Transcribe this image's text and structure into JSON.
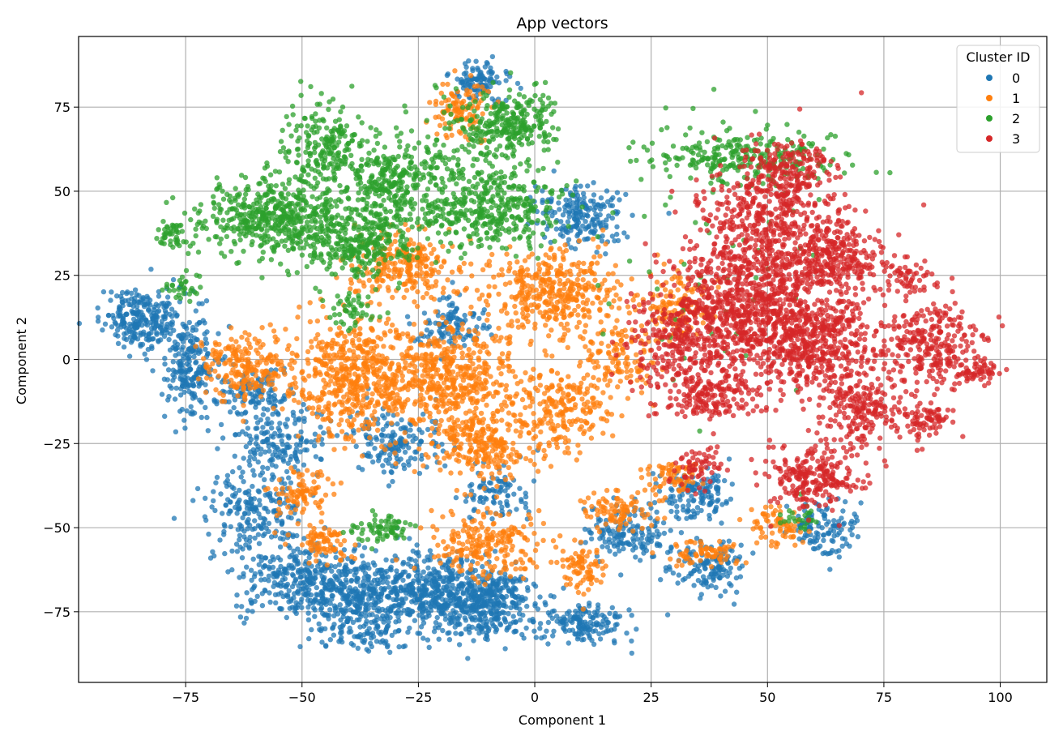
{
  "chart_data": {
    "type": "scatter",
    "title": "App vectors",
    "xlabel": "Component 1",
    "ylabel": "Component 2",
    "xlim": [
      -98,
      110
    ],
    "ylim": [
      -96,
      96
    ],
    "x_ticks": [
      -75,
      -50,
      -25,
      0,
      25,
      50,
      75,
      100
    ],
    "y_ticks": [
      -75,
      -50,
      -25,
      0,
      25,
      50,
      75
    ],
    "x_tick_labels": [
      "−75",
      "−50",
      "−25",
      "0",
      "25",
      "50",
      "75",
      "100"
    ],
    "y_tick_labels": [
      "−75",
      "−50",
      "−25",
      "0",
      "25",
      "50",
      "75"
    ],
    "grid": true,
    "legend": {
      "title": "Cluster ID",
      "position": "top-right"
    },
    "series": [
      {
        "name": "0",
        "color": "#1f77b4",
        "clusters": [
          {
            "x": -12,
            "y": 83,
            "sx": 3,
            "sy": 3,
            "n": 110
          },
          {
            "x": -84,
            "y": 12,
            "sx": 4,
            "sy": 5,
            "n": 250
          },
          {
            "x": -74,
            "y": -2,
            "sx": 3,
            "sy": 8,
            "n": 220
          },
          {
            "x": 10,
            "y": 43,
            "sx": 5,
            "sy": 5,
            "n": 200
          },
          {
            "x": -18,
            "y": 10,
            "sx": 4,
            "sy": 4,
            "n": 110
          },
          {
            "x": -30,
            "y": -25,
            "sx": 5,
            "sy": 5,
            "n": 160
          },
          {
            "x": -55,
            "y": -25,
            "sx": 5,
            "sy": 5,
            "n": 160
          },
          {
            "x": -60,
            "y": -45,
            "sx": 5,
            "sy": 6,
            "n": 200
          },
          {
            "x": -52,
            "y": -65,
            "sx": 6,
            "sy": 6,
            "n": 260
          },
          {
            "x": -38,
            "y": -70,
            "sx": 6,
            "sy": 6,
            "n": 360
          },
          {
            "x": -22,
            "y": -70,
            "sx": 7,
            "sy": 6,
            "n": 420
          },
          {
            "x": -10,
            "y": -72,
            "sx": 5,
            "sy": 5,
            "n": 320
          },
          {
            "x": 10,
            "y": -78,
            "sx": 5,
            "sy": 3,
            "n": 160
          },
          {
            "x": 35,
            "y": -40,
            "sx": 4,
            "sy": 4,
            "n": 130
          },
          {
            "x": 20,
            "y": -52,
            "sx": 5,
            "sy": 4,
            "n": 150
          },
          {
            "x": 38,
            "y": -62,
            "sx": 4,
            "sy": 4,
            "n": 140
          },
          {
            "x": 62,
            "y": -50,
            "sx": 4,
            "sy": 4,
            "n": 120
          },
          {
            "x": -60,
            "y": -10,
            "sx": 4,
            "sy": 4,
            "n": 110
          },
          {
            "x": -8,
            "y": -40,
            "sx": 4,
            "sy": 4,
            "n": 90
          },
          {
            "x": -35,
            "y": -82,
            "sx": 3,
            "sy": 2,
            "n": 50
          }
        ]
      },
      {
        "name": "1",
        "color": "#ff7f0e",
        "clusters": [
          {
            "x": -16,
            "y": 74,
            "sx": 3,
            "sy": 4,
            "n": 110
          },
          {
            "x": 4,
            "y": 20,
            "sx": 7,
            "sy": 7,
            "n": 400
          },
          {
            "x": -28,
            "y": 28,
            "sx": 6,
            "sy": 5,
            "n": 240
          },
          {
            "x": -38,
            "y": -5,
            "sx": 7,
            "sy": 9,
            "n": 560
          },
          {
            "x": -18,
            "y": -5,
            "sx": 7,
            "sy": 7,
            "n": 420
          },
          {
            "x": -12,
            "y": -25,
            "sx": 5,
            "sy": 5,
            "n": 240
          },
          {
            "x": 5,
            "y": -15,
            "sx": 6,
            "sy": 6,
            "n": 240
          },
          {
            "x": -62,
            "y": -2,
            "sx": 5,
            "sy": 5,
            "n": 210
          },
          {
            "x": -50,
            "y": -40,
            "sx": 3,
            "sy": 4,
            "n": 90
          },
          {
            "x": -45,
            "y": -55,
            "sx": 3,
            "sy": 3,
            "n": 80
          },
          {
            "x": -10,
            "y": -55,
            "sx": 6,
            "sy": 5,
            "n": 220
          },
          {
            "x": 10,
            "y": -62,
            "sx": 3,
            "sy": 4,
            "n": 80
          },
          {
            "x": 18,
            "y": -45,
            "sx": 4,
            "sy": 3,
            "n": 90
          },
          {
            "x": 30,
            "y": -35,
            "sx": 3,
            "sy": 3,
            "n": 70
          },
          {
            "x": 36,
            "y": -58,
            "sx": 4,
            "sy": 2,
            "n": 70
          },
          {
            "x": 52,
            "y": -50,
            "sx": 3,
            "sy": 3,
            "n": 70
          },
          {
            "x": 30,
            "y": 15,
            "sx": 4,
            "sy": 6,
            "n": 130
          },
          {
            "x": 18,
            "y": 0,
            "sx": 4,
            "sy": 5,
            "n": 110
          }
        ]
      },
      {
        "name": "2",
        "color": "#2ca02c",
        "clusters": [
          {
            "x": -5,
            "y": 70,
            "sx": 5,
            "sy": 5,
            "n": 260
          },
          {
            "x": -45,
            "y": 62,
            "sx": 5,
            "sy": 6,
            "n": 220
          },
          {
            "x": -30,
            "y": 52,
            "sx": 6,
            "sy": 6,
            "n": 260
          },
          {
            "x": -55,
            "y": 42,
            "sx": 8,
            "sy": 6,
            "n": 520
          },
          {
            "x": -10,
            "y": 45,
            "sx": 7,
            "sy": 6,
            "n": 360
          },
          {
            "x": -38,
            "y": 35,
            "sx": 6,
            "sy": 5,
            "n": 260
          },
          {
            "x": -78,
            "y": 37,
            "sx": 2,
            "sy": 2,
            "n": 45
          },
          {
            "x": -75,
            "y": 22,
            "sx": 2,
            "sy": 2,
            "n": 30
          },
          {
            "x": -40,
            "y": 15,
            "sx": 3,
            "sy": 3,
            "n": 50
          },
          {
            "x": 45,
            "y": 60,
            "sx": 10,
            "sy": 4,
            "n": 260
          },
          {
            "x": -33,
            "y": -50,
            "sx": 3,
            "sy": 2,
            "n": 70
          },
          {
            "x": 57,
            "y": -47,
            "sx": 2,
            "sy": 2,
            "n": 25
          },
          {
            "x": 40,
            "y": 30,
            "sx": 15,
            "sy": 25,
            "n": 60
          },
          {
            "x": -20,
            "y": 60,
            "sx": 8,
            "sy": 10,
            "n": 120
          }
        ]
      },
      {
        "name": "3",
        "color": "#d62728",
        "clusters": [
          {
            "x": 50,
            "y": 40,
            "sx": 8,
            "sy": 10,
            "n": 520
          },
          {
            "x": 45,
            "y": 15,
            "sx": 9,
            "sy": 9,
            "n": 760
          },
          {
            "x": 65,
            "y": 30,
            "sx": 5,
            "sy": 5,
            "n": 260
          },
          {
            "x": 60,
            "y": 5,
            "sx": 7,
            "sy": 7,
            "n": 460
          },
          {
            "x": 85,
            "y": 5,
            "sx": 6,
            "sy": 6,
            "n": 260
          },
          {
            "x": 95,
            "y": -3,
            "sx": 3,
            "sy": 2,
            "n": 60
          },
          {
            "x": 70,
            "y": -15,
            "sx": 5,
            "sy": 5,
            "n": 200
          },
          {
            "x": 84,
            "y": -18,
            "sx": 3,
            "sy": 3,
            "n": 80
          },
          {
            "x": 60,
            "y": -35,
            "sx": 5,
            "sy": 5,
            "n": 240
          },
          {
            "x": 55,
            "y": 55,
            "sx": 5,
            "sy": 5,
            "n": 150
          },
          {
            "x": 38,
            "y": -10,
            "sx": 6,
            "sy": 5,
            "n": 220
          },
          {
            "x": 30,
            "y": 5,
            "sx": 5,
            "sy": 6,
            "n": 160
          },
          {
            "x": 35,
            "y": -32,
            "sx": 3,
            "sy": 3,
            "n": 60
          },
          {
            "x": 80,
            "y": 25,
            "sx": 3,
            "sy": 3,
            "n": 60
          }
        ]
      }
    ]
  }
}
